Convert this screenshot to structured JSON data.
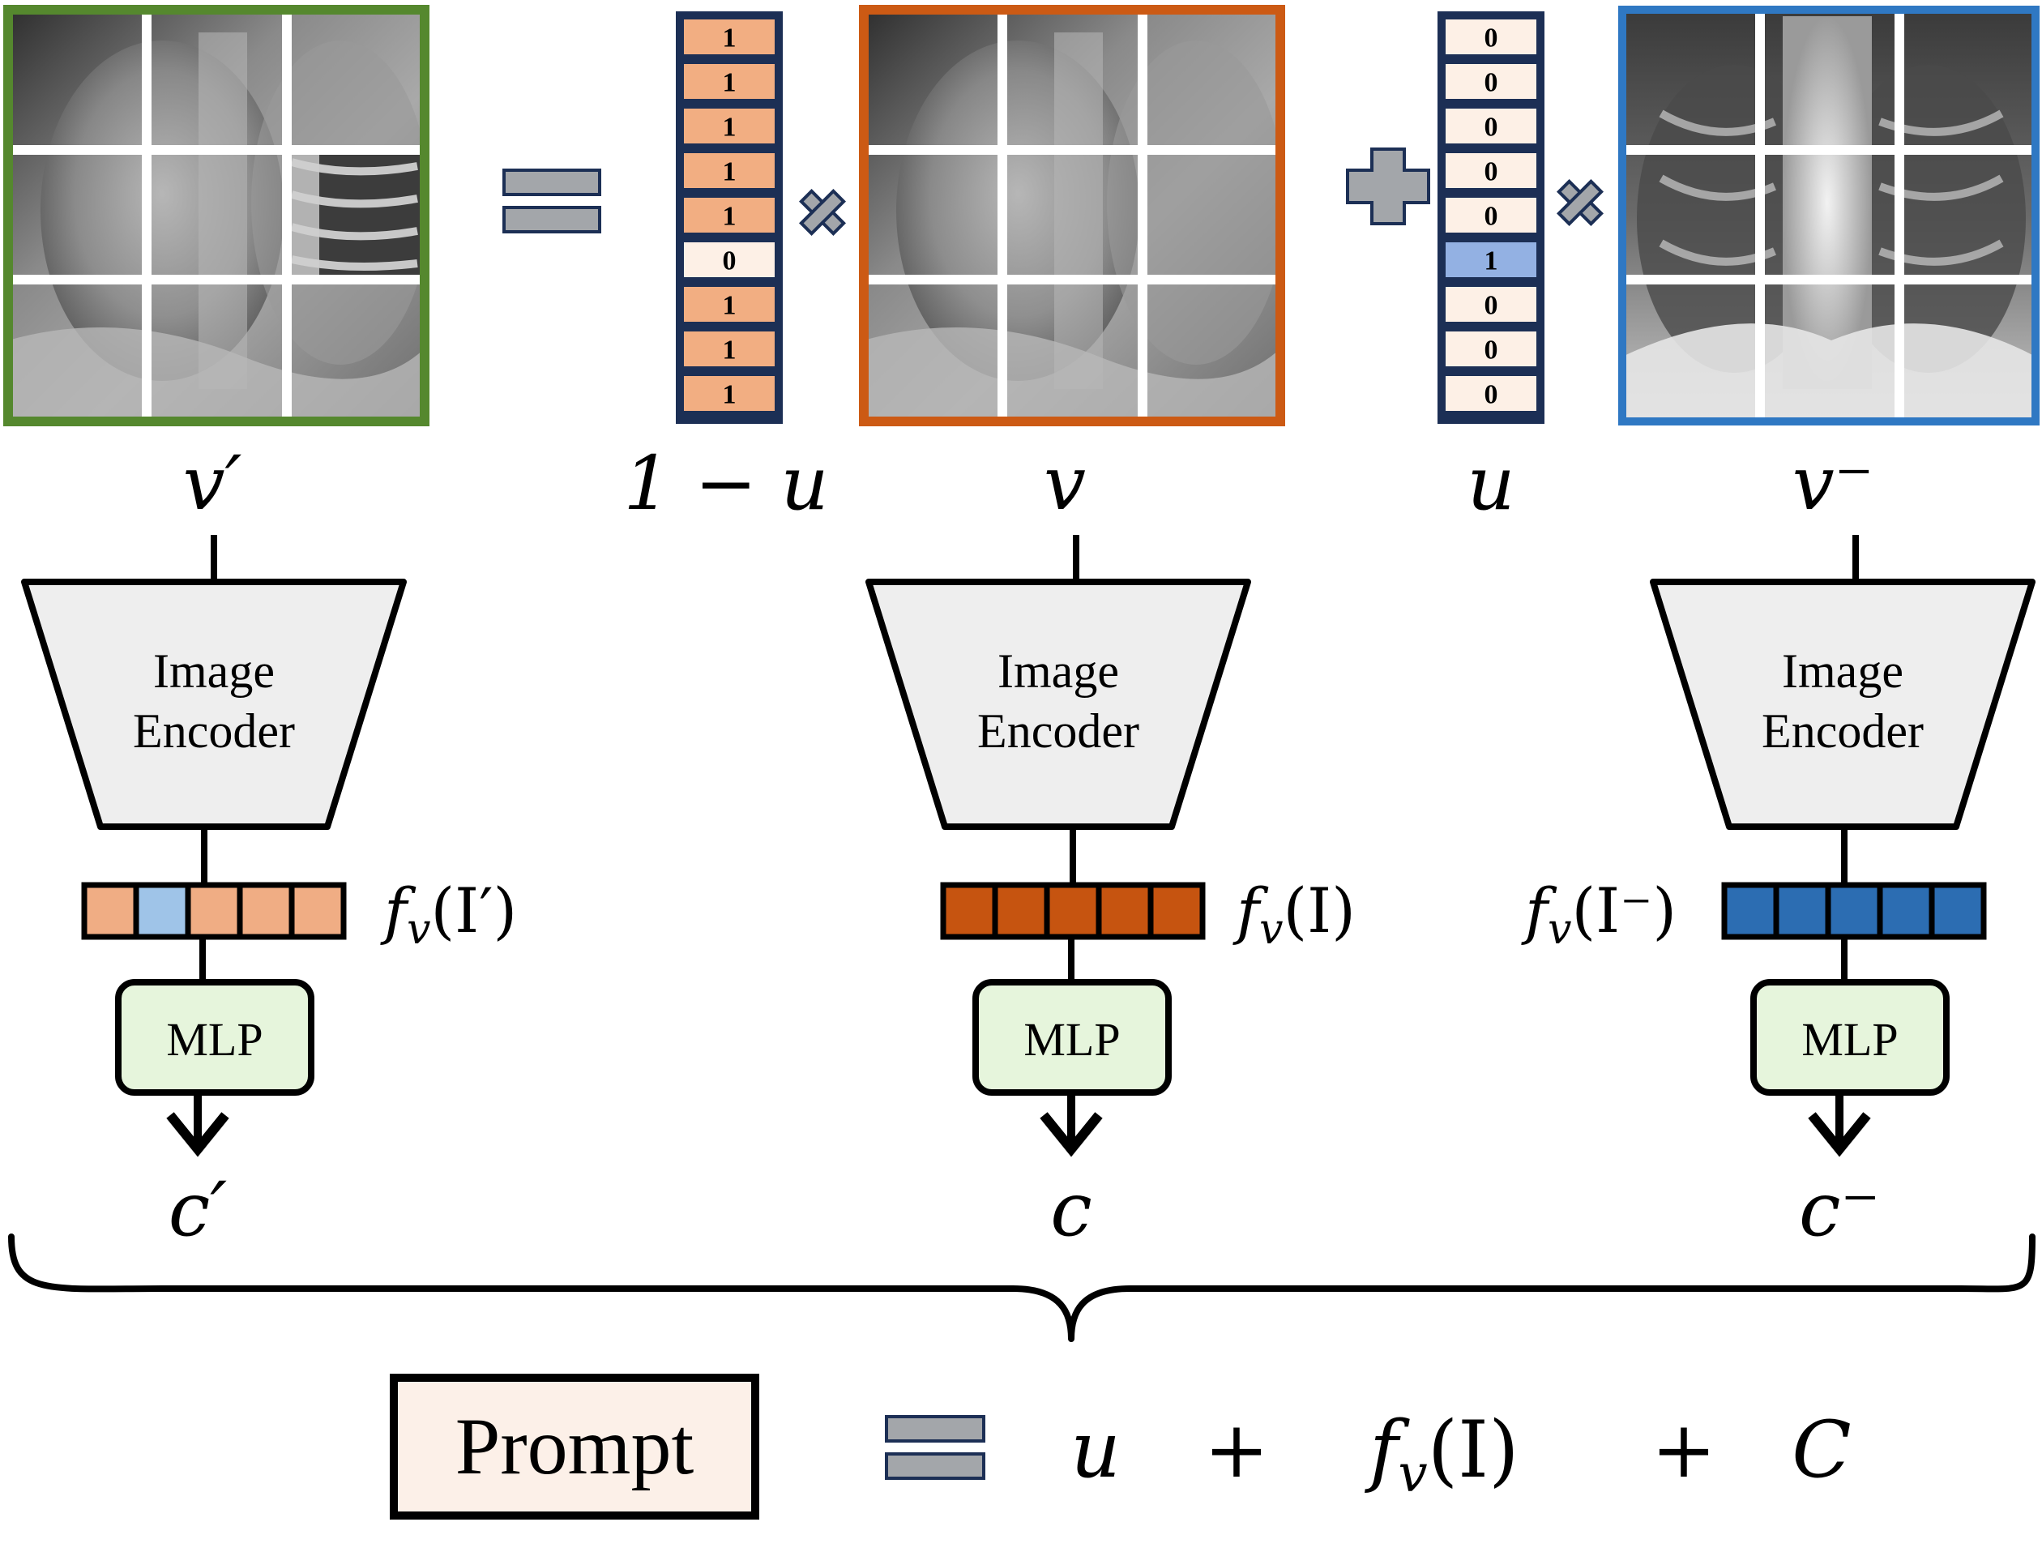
{
  "labels": {
    "v_prime": "v′",
    "one_minus_u": "1 − u",
    "v": "v",
    "u": "u",
    "v_minus": "v⁻",
    "c_prime": "c′",
    "c": "c",
    "c_minus": "c⁻"
  },
  "encoder": {
    "line1": "Image",
    "line2": "Encoder"
  },
  "mlp_label": "MLP",
  "features": {
    "left": {
      "f": "f",
      "sub": "v",
      "arg": "(I′)"
    },
    "mid": {
      "f": "f",
      "sub": "v",
      "arg": "(I)"
    },
    "right": {
      "f": "f",
      "sub": "v",
      "arg": "(I⁻)"
    }
  },
  "mask_one_minus_u": [
    "1",
    "1",
    "1",
    "1",
    "1",
    "0",
    "1",
    "1",
    "1"
  ],
  "mask_u": [
    "0",
    "0",
    "0",
    "0",
    "0",
    "1",
    "0",
    "0",
    "0"
  ],
  "prompt": {
    "box_label": "Prompt",
    "term_u": "u",
    "plus1": "+",
    "term_f": "f",
    "term_f_sub": "v",
    "term_f_arg": "(I)",
    "plus2": "+",
    "term_c": "C"
  },
  "colors": {
    "green_frame": "#55882e",
    "orange_frame": "#cc5a14",
    "blue_frame": "#2f78c3",
    "navy": "#1c2f55",
    "orange_cell": "#f2ae82",
    "pale_cell": "#fdf0e6",
    "blue_cell": "#93b1e3",
    "feat_orange_light": "#f0ad84",
    "feat_blue_light": "#9fc4e8",
    "feat_orange_dark": "#c65410",
    "feat_blue_dark": "#2c6db2",
    "mlp_fill": "#e6f5dc",
    "encoder_fill": "#eeeeee",
    "prompt_fill": "#fcf0e8",
    "gray_symbol": "#a3a6aa"
  }
}
